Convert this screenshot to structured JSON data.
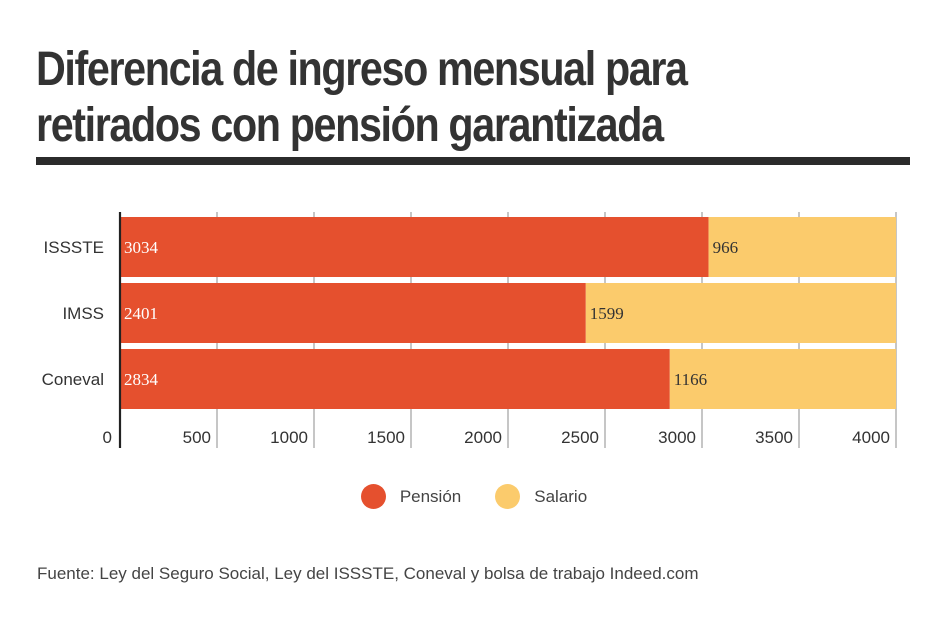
{
  "title": "Diferencia de ingreso mensual para retirados con pensión garantizada",
  "source": "Fuente: Ley del Seguro Social, Ley del ISSSTE, Coneval y bolsa de trabajo Indeed.com",
  "colors": {
    "title": "#333333",
    "rule": "#2b2b2b",
    "pension": "#e5502e",
    "salario": "#fbcb6c",
    "grid": "#a8a8a8",
    "axis": "#222222",
    "label_on_dark": "#ffffff",
    "label_on_light": "#333333"
  },
  "legend": [
    {
      "name": "Pensión",
      "color": "#e5502e"
    },
    {
      "name": "Salario",
      "color": "#fbcb6c"
    }
  ],
  "chart_data": {
    "type": "bar",
    "orientation": "horizontal",
    "stacked": true,
    "categories": [
      "ISSSTE",
      "IMSS",
      "Coneval"
    ],
    "series": [
      {
        "name": "Pensión",
        "values": [
          3034,
          2401,
          2834
        ]
      },
      {
        "name": "Salario",
        "values": [
          966,
          1599,
          1166
        ]
      }
    ],
    "xlim": [
      0,
      4000
    ],
    "xticks": [
      0,
      500,
      1000,
      1500,
      2000,
      2500,
      3000,
      3500,
      4000
    ],
    "grid": true,
    "legend_position": "bottom-center",
    "title": "Diferencia de ingreso mensual para retirados con pensión garantizada",
    "xlabel": "",
    "ylabel": ""
  }
}
